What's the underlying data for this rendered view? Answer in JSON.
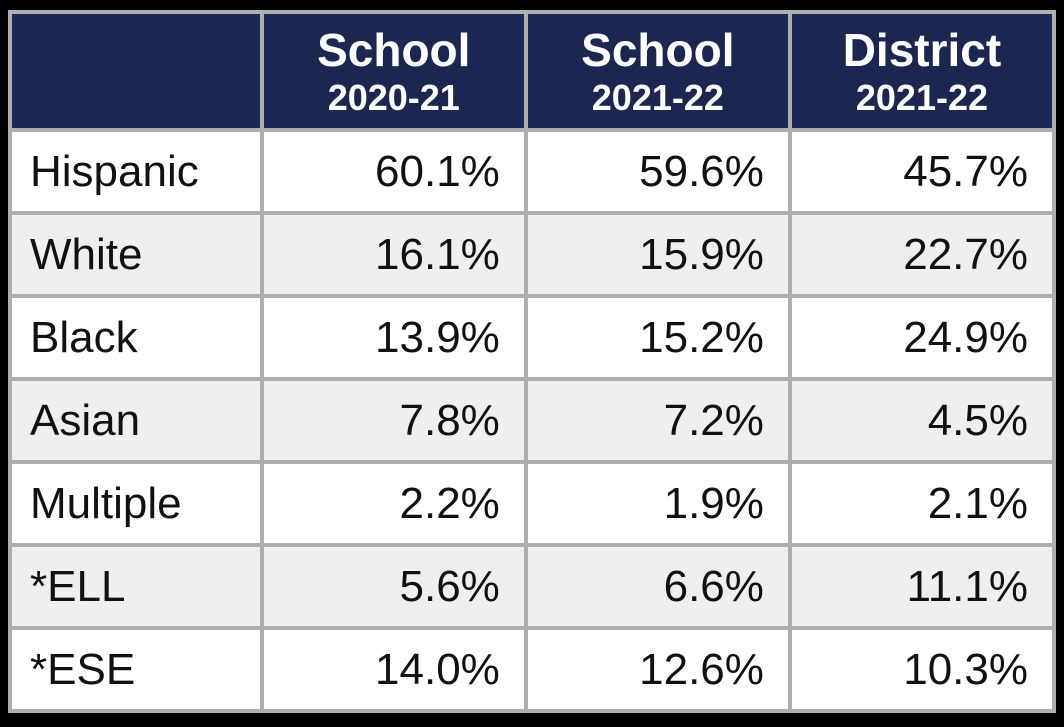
{
  "table": {
    "header": {
      "corner": "",
      "columns": [
        {
          "line1": "School",
          "line2": "2020-21"
        },
        {
          "line1": "School",
          "line2": "2021-22"
        },
        {
          "line1": "District",
          "line2": "2021-22"
        }
      ]
    },
    "rows": [
      {
        "label": "Hispanic",
        "values": [
          "60.1%",
          "59.6%",
          "45.7%"
        ]
      },
      {
        "label": "White",
        "values": [
          "16.1%",
          "15.9%",
          "22.7%"
        ]
      },
      {
        "label": "Black",
        "values": [
          "13.9%",
          "15.2%",
          "24.9%"
        ]
      },
      {
        "label": "Asian",
        "values": [
          "7.8%",
          "7.2%",
          "4.5%"
        ]
      },
      {
        "label": "Multiple",
        "values": [
          "2.2%",
          "1.9%",
          "2.1%"
        ]
      },
      {
        "label": "*ELL",
        "values": [
          "5.6%",
          "6.6%",
          "11.1%"
        ]
      },
      {
        "label": "*ESE",
        "values": [
          "14.0%",
          "12.6%",
          "10.3%"
        ]
      }
    ]
  },
  "colors": {
    "header_bg": "#1b2750",
    "header_text": "#ffffff",
    "row_bg": "#ffffff",
    "row_alt_bg": "#efefef",
    "grid": "#aeaeae",
    "frame": "#000000",
    "body_text": "#111111"
  },
  "chart_data": {
    "type": "table",
    "title": "School Demographics Comparison",
    "categories": [
      "Hispanic",
      "White",
      "Black",
      "Asian",
      "Multiple",
      "*ELL",
      "*ESE"
    ],
    "series": [
      {
        "name": "School 2020-21",
        "values": [
          60.1,
          16.1,
          13.9,
          7.8,
          2.2,
          5.6,
          14.0
        ]
      },
      {
        "name": "School 2021-22",
        "values": [
          59.6,
          15.9,
          15.2,
          7.2,
          1.9,
          6.6,
          12.6
        ]
      },
      {
        "name": "District 2021-22",
        "values": [
          45.7,
          22.7,
          24.9,
          4.5,
          2.1,
          11.1,
          10.3
        ]
      }
    ],
    "unit": "%",
    "layout": {
      "grid": true,
      "legend_position": "none",
      "header_rows": 1
    }
  }
}
